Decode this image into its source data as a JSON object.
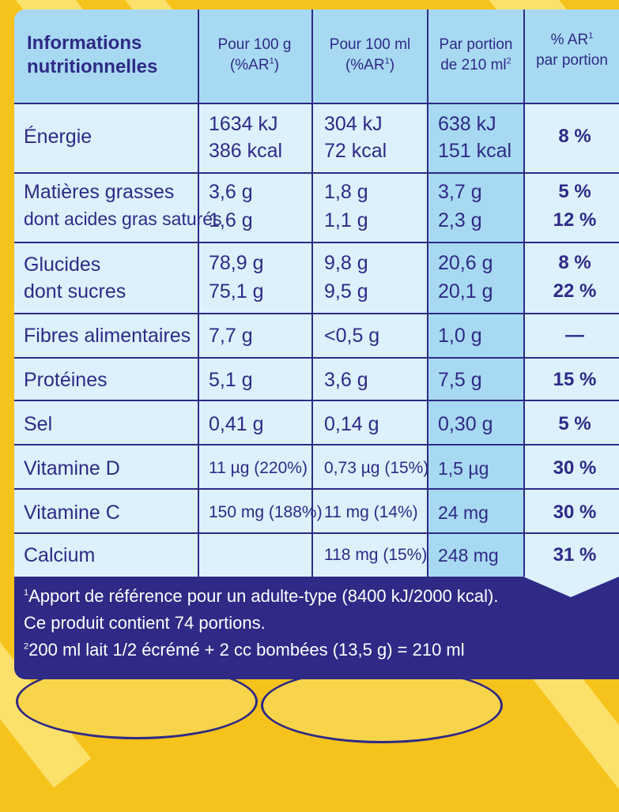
{
  "header": {
    "title_line1": "Informations",
    "title_line2": "nutritionnelles",
    "col1_line1": "Pour 100 g",
    "col1_line2": "(%AR",
    "col2_line1": "Pour 100 ml",
    "col2_line2": "(%AR",
    "col3_line1": "Par portion",
    "col3_line2": "de 210 ml",
    "col4_line1": "% AR",
    "col4_line2": "par portion",
    "sup1": "1",
    "sup2": "2",
    "close_paren": ")"
  },
  "rows": {
    "energie": {
      "label": "Énergie",
      "p100g_a": "1634 kJ",
      "p100g_b": "386 kcal",
      "p100ml_a": "304 kJ",
      "p100ml_b": "72 kcal",
      "portion_a": "638 kJ",
      "portion_b": "151 kcal",
      "ar": "8 %"
    },
    "matieres": {
      "label": "Matières grasses",
      "p100g": "3,6 g",
      "p100ml": "1,8 g",
      "portion": "3,7 g",
      "ar": "5 %"
    },
    "satures": {
      "label": "dont acides gras saturés",
      "p100g": "1,6 g",
      "p100ml": "1,1 g",
      "portion": "2,3 g",
      "ar": "12 %"
    },
    "glucides": {
      "label": "Glucides",
      "p100g": "78,9 g",
      "p100ml": "9,8 g",
      "portion": "20,6 g",
      "ar": "8 %"
    },
    "sucres": {
      "label": "dont sucres",
      "p100g": "75,1 g",
      "p100ml": "9,5 g",
      "portion": "20,1 g",
      "ar": "22 %"
    },
    "fibres": {
      "label": "Fibres alimentaires",
      "p100g": "7,7 g",
      "p100ml": "<0,5 g",
      "portion": "1,0 g",
      "ar": "—"
    },
    "proteines": {
      "label": "Protéines",
      "p100g": "5,1 g",
      "p100ml": "3,6 g",
      "portion": "7,5 g",
      "ar": "15 %"
    },
    "sel": {
      "label": "Sel",
      "p100g": "0,41 g",
      "p100ml": "0,14 g",
      "portion": "0,30 g",
      "ar": "5 %"
    },
    "vitd": {
      "label": "Vitamine D",
      "p100g": "11 µg  (220%)",
      "p100ml": "0,73 µg (15%)",
      "portion": "1,5 µg",
      "ar": "30 %"
    },
    "vitc": {
      "label": "Vitamine C",
      "p100g": "150 mg (188%)",
      "p100ml": "11 mg (14%)",
      "portion": "24 mg",
      "ar": "30 %"
    },
    "calcium": {
      "label": "Calcium",
      "p100g": "",
      "p100ml": "118 mg (15%)",
      "portion": "248 mg",
      "ar": "31 %"
    }
  },
  "footer": {
    "line1_sup": "1",
    "line1": "Apport de référence pour un adulte-type (8400 kJ/2000 kcal).",
    "line2": "Ce produit contient 74 portions.",
    "line3_sup": "2",
    "line3": "200 ml lait 1/2 écrémé + 2 cc bombées (13,5 g) = 210 ml"
  },
  "colors": {
    "text": "#2e2a86",
    "panel": "#dcf1fb",
    "shade": "#a8d9f2",
    "background": "#f6c21c"
  }
}
